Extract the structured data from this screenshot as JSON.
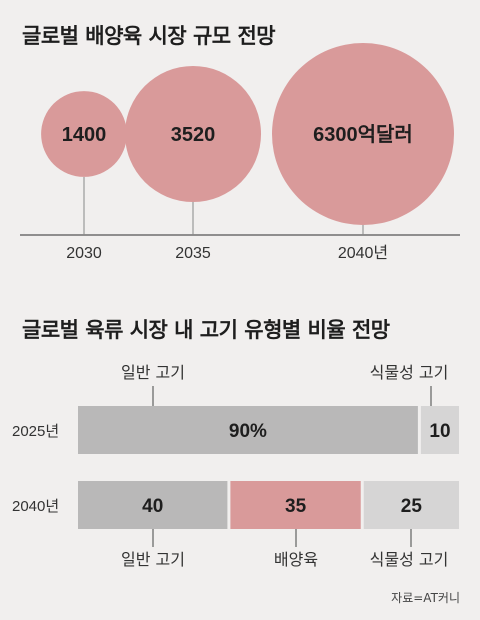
{
  "title_market": "글로벌 배양육 시장 규모 전망",
  "title_share": "글로벌 육류 시장 내 고기 유형별 비율 전망",
  "source": "자료=AT커니",
  "chart_data": [
    {
      "type": "bubble",
      "title": "글로벌 배양육 시장 규모 전망",
      "x": [
        "2030",
        "2035",
        "2040년"
      ],
      "values": [
        1400,
        3520,
        6300
      ],
      "data_labels": [
        "1400",
        "3520",
        "6300억달러"
      ],
      "unit": "억달러",
      "colors": {
        "bubble": "#d99a9a",
        "axis": "#555555"
      }
    },
    {
      "type": "bar",
      "stacked": true,
      "orientation": "horizontal",
      "title": "글로벌 육류 시장 내 고기 유형별 비율 전망",
      "categories": [
        "2025년",
        "2040년"
      ],
      "series": [
        {
          "name": "일반 고기",
          "values": [
            90,
            40
          ],
          "color": "#b9b8b8"
        },
        {
          "name": "배양육",
          "values": [
            0,
            35
          ],
          "color": "#d99a9a"
        },
        {
          "name": "식물성 고기",
          "values": [
            10,
            25
          ],
          "color": "#d6d5d5"
        }
      ],
      "data_labels": [
        [
          "90%",
          "",
          "10"
        ],
        [
          "40",
          "35",
          "25"
        ]
      ]
    }
  ]
}
